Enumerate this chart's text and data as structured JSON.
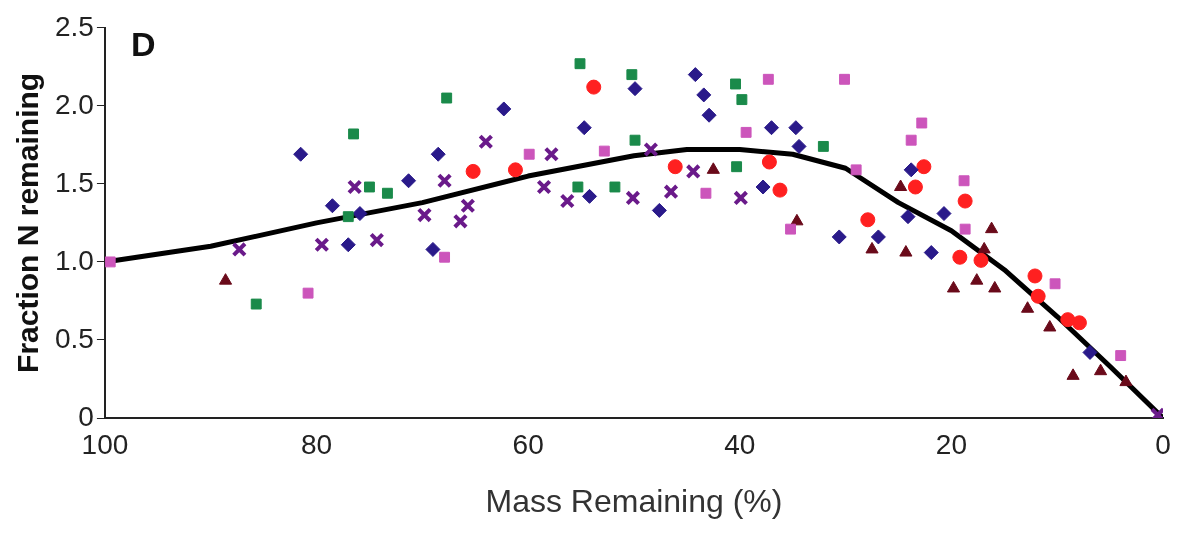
{
  "chart_data": {
    "type": "scatter",
    "xlabel": "Mass Remaining (%)",
    "ylabel": "Fraction N remaining",
    "annotations": [
      "D"
    ],
    "xlim": [
      100,
      0
    ],
    "xticks": [
      100,
      80,
      60,
      40,
      20,
      0
    ],
    "ylim": [
      0,
      2.5
    ],
    "yticks": [
      0,
      0.5,
      {
        "value": 1,
        "label": "1.0"
      },
      1.5,
      {
        "value": 2,
        "label": "2.0"
      },
      2.5
    ],
    "grid": false,
    "legend": false,
    "series": [
      {
        "color": "#cc55bb",
        "marker": "square",
        "x": [
          99.5,
          80.8,
          67.9,
          59.9,
          52.8,
          43.2,
          39.4,
          37.3,
          35.2,
          30.1,
          29.0,
          23.8,
          22.8,
          18.8,
          18.7,
          10.2,
          4.0
        ],
        "values": [
          1.0,
          0.8,
          1.03,
          1.69,
          1.71,
          1.44,
          1.83,
          2.17,
          1.21,
          2.17,
          1.59,
          1.78,
          1.89,
          1.52,
          1.21,
          0.86,
          0.4
        ]
      },
      {
        "color": "#1a8a4a",
        "marker": "square",
        "x": [
          85.7,
          76.5,
          77.0,
          75.0,
          73.3,
          67.7,
          55.1,
          55.3,
          51.8,
          50.2,
          49.9,
          40.4,
          39.8,
          40.3,
          32.1
        ],
        "values": [
          0.73,
          1.82,
          1.29,
          1.48,
          1.44,
          2.05,
          2.27,
          1.48,
          1.48,
          2.2,
          1.78,
          2.14,
          2.04,
          1.61,
          1.74
        ]
      },
      {
        "color": "#2a1a8a",
        "marker": "diamond",
        "x": [
          81.5,
          78.5,
          77.0,
          75.9,
          71.3,
          68.5,
          69.0,
          62.3,
          54.7,
          54.2,
          49.9,
          47.6,
          44.2,
          43.4,
          42.9,
          37.0,
          34.7,
          34.4,
          37.8,
          30.6,
          26.9,
          23.8,
          24.1,
          21.9,
          20.7,
          6.9
        ],
        "values": [
          1.69,
          1.36,
          1.11,
          1.31,
          1.52,
          1.69,
          1.08,
          1.98,
          1.86,
          1.42,
          2.11,
          1.33,
          2.2,
          2.07,
          1.94,
          1.86,
          1.86,
          1.74,
          1.48,
          1.16,
          1.16,
          1.59,
          1.29,
          1.06,
          1.31,
          0.42
        ]
      },
      {
        "color": "#ff2020",
        "marker": "circle",
        "x": [
          65.2,
          61.2,
          53.8,
          46.1,
          37.2,
          36.2,
          27.9,
          22.6,
          23.4,
          18.7,
          19.2,
          17.2,
          12.1,
          11.8,
          9.0,
          7.9
        ],
        "values": [
          1.58,
          1.59,
          2.12,
          1.61,
          1.64,
          1.46,
          1.27,
          1.61,
          1.48,
          1.39,
          1.03,
          1.01,
          0.91,
          0.78,
          0.63,
          0.61
        ]
      },
      {
        "color": "#6a1a8a",
        "marker": "cross",
        "x": [
          87.3,
          79.5,
          76.4,
          74.3,
          69.8,
          67.9,
          66.4,
          65.7,
          64.0,
          57.8,
          58.5,
          56.3,
          50.1,
          48.4,
          46.5,
          44.4,
          39.9,
          0.5
        ],
        "values": [
          1.08,
          1.11,
          1.48,
          1.14,
          1.3,
          1.52,
          1.26,
          1.36,
          1.77,
          1.69,
          1.48,
          1.39,
          1.41,
          1.72,
          1.45,
          1.58,
          1.41,
          0.02
        ]
      },
      {
        "color": "#6a0a1a",
        "marker": "triangle",
        "x": [
          88.6,
          42.5,
          34.6,
          27.5,
          24.3,
          24.8,
          19.8,
          16.2,
          16.9,
          17.6,
          15.9,
          12.8,
          10.7,
          8.5,
          5.9,
          3.5
        ],
        "values": [
          0.88,
          1.59,
          1.26,
          1.08,
          1.06,
          1.48,
          0.83,
          1.21,
          1.08,
          0.88,
          0.83,
          0.7,
          0.58,
          0.27,
          0.3,
          0.23
        ]
      },
      {
        "type": "line",
        "color": "#000000",
        "marker": "none",
        "x": [
          100,
          90,
          80,
          70,
          60,
          50,
          45,
          40,
          35,
          30,
          25,
          20,
          15,
          10,
          5,
          0
        ],
        "values": [
          1.0,
          1.1,
          1.25,
          1.38,
          1.55,
          1.68,
          1.72,
          1.72,
          1.69,
          1.6,
          1.38,
          1.2,
          0.95,
          0.65,
          0.33,
          0
        ]
      }
    ]
  }
}
